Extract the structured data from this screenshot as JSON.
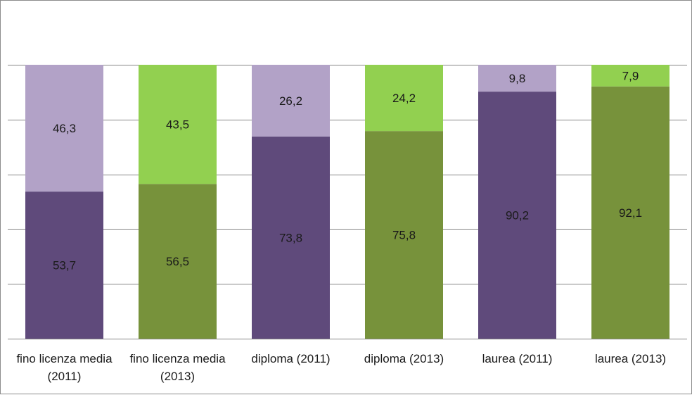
{
  "chart_data": {
    "type": "bar",
    "stacked": true,
    "percent": true,
    "categories": [
      [
        "fino licenza media",
        "(2011)"
      ],
      [
        "fino licenza media",
        "(2013)"
      ],
      [
        "diploma (2011)"
      ],
      [
        "diploma (2013)"
      ],
      [
        "laurea (2011)"
      ],
      [
        "laurea (2013)"
      ]
    ],
    "series": [
      {
        "values": [
          53.7,
          56.5,
          73.8,
          75.8,
          90.2,
          92.1
        ],
        "labels": [
          "53,7",
          "56,5",
          "73,8",
          "75,8",
          "90,2",
          "92,1"
        ],
        "colors": [
          "#5f4a7b",
          "#77923b",
          "#5f4a7b",
          "#77923b",
          "#5f4a7b",
          "#77923b"
        ]
      },
      {
        "values": [
          46.3,
          43.5,
          26.2,
          24.2,
          9.8,
          7.9
        ],
        "labels": [
          "46,3",
          "43,5",
          "26,2",
          "24,2",
          "9,8",
          "7,9"
        ],
        "colors": [
          "#b2a2c7",
          "#92d050",
          "#b2a2c7",
          "#92d050",
          "#b2a2c7",
          "#92d050"
        ]
      }
    ],
    "ylim": [
      0,
      100
    ],
    "gridlines": 5,
    "grid": true,
    "legend": "none"
  }
}
